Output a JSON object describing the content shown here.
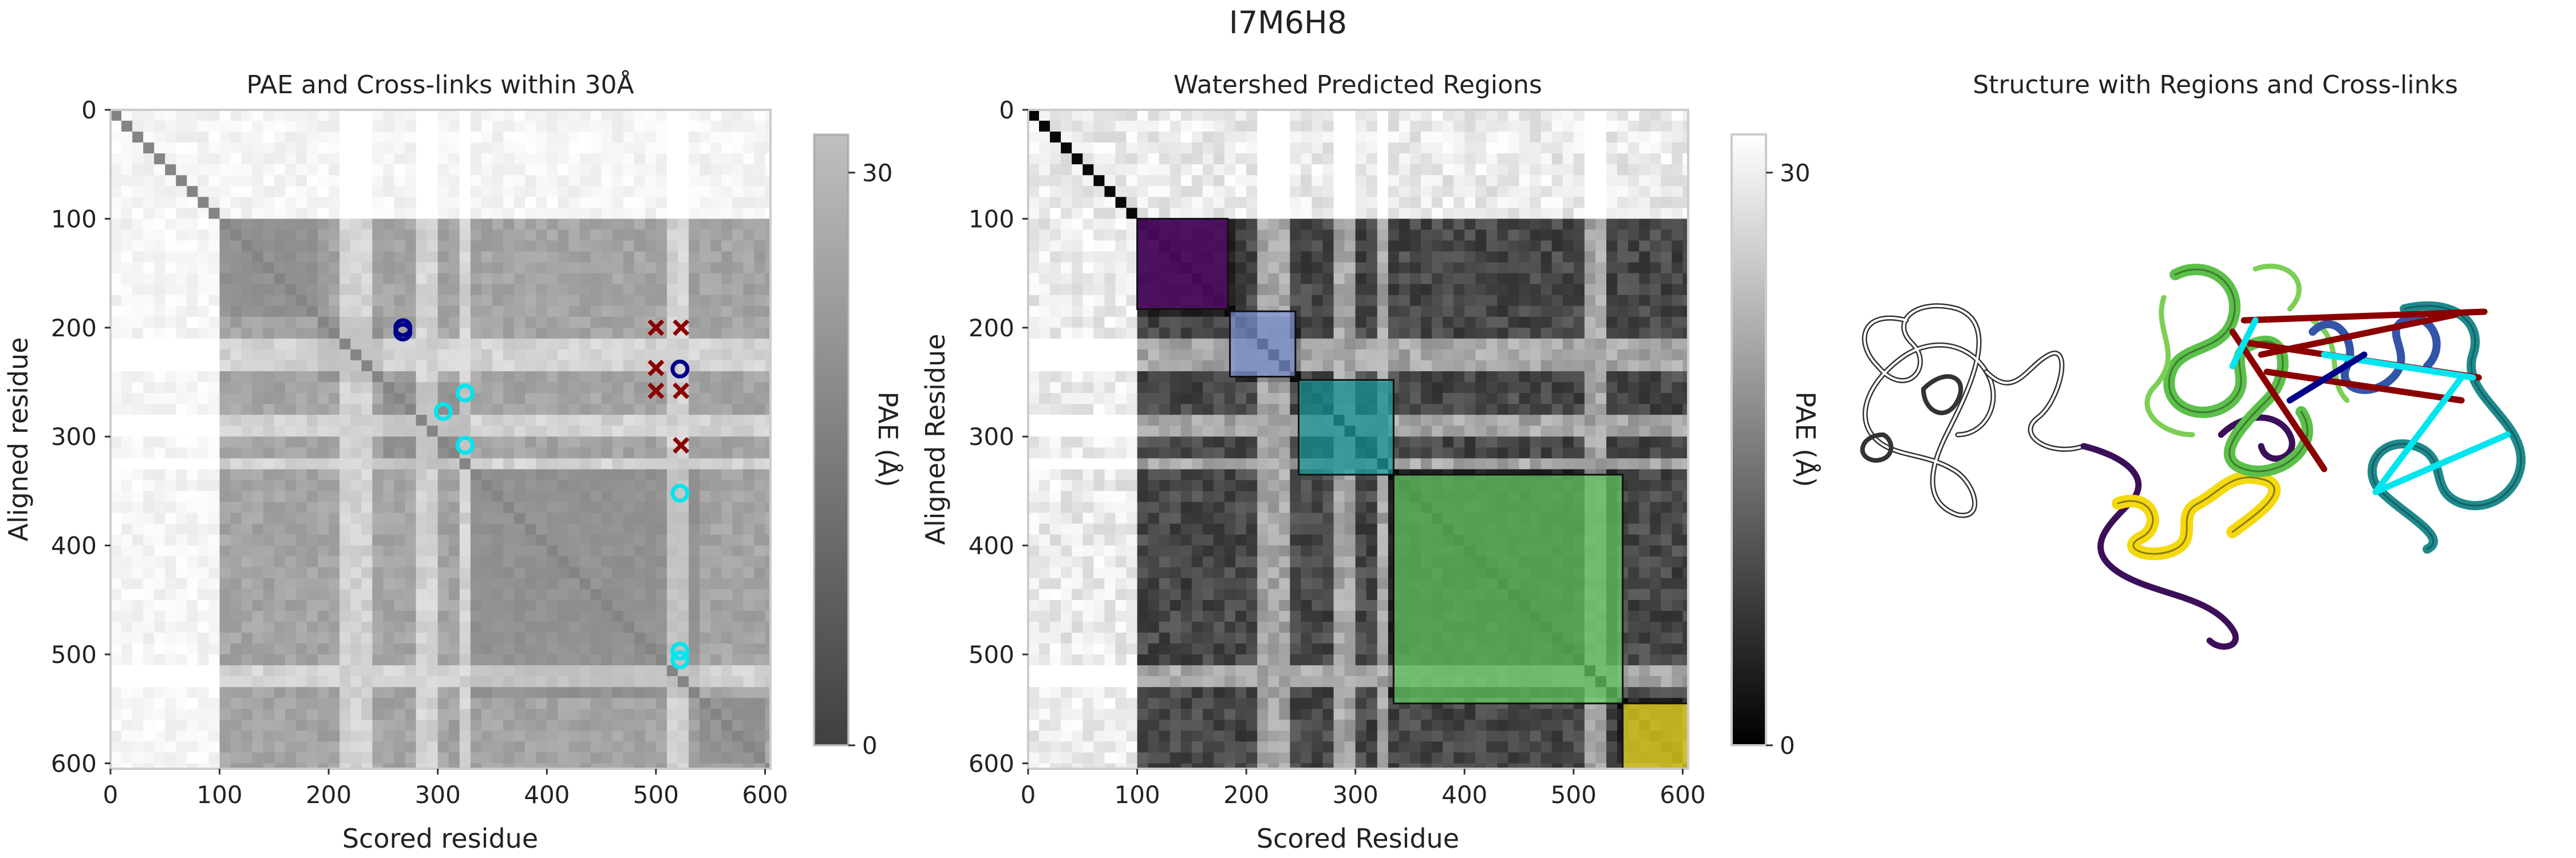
{
  "suptitle": "I7M6H8",
  "colors": {
    "cmap_low": "#000000",
    "cmap_high": "#ffffff",
    "axis_frame": "#cccccc",
    "crosslink_within": "#00e5ee",
    "crosslink_dark_circle": "#00008b",
    "crosslink_violation": "#8b0000",
    "region_purple": "#5b0a74",
    "region_blue": "#7f95d8",
    "region_teal": "#1f9f9f",
    "region_green": "#6ad06a",
    "region_yellow": "#fde725"
  },
  "chart_data": [
    {
      "type": "heatmap",
      "title": "PAE and Cross-links within 30Å",
      "xlabel": "Scored residue",
      "ylabel": "Aligned residue",
      "xlim": [
        0,
        605
      ],
      "ylim": [
        605,
        0
      ],
      "xticks": [
        0,
        100,
        200,
        300,
        400,
        500,
        600
      ],
      "yticks": [
        0,
        100,
        200,
        300,
        400,
        500,
        600
      ],
      "grid": false,
      "colorbar": {
        "label": "PAE (Å)",
        "range": [
          0,
          32
        ],
        "ticks": [
          0,
          30
        ]
      },
      "domain_boundaries": [
        100,
        190,
        250,
        335,
        545,
        605
      ],
      "crosslinks_within_30A": [
        {
          "x": 268,
          "y": 200,
          "color": "dark"
        },
        {
          "x": 268,
          "y": 204,
          "color": "dark"
        },
        {
          "x": 522,
          "y": 238,
          "color": "dark"
        },
        {
          "x": 325,
          "y": 260,
          "color": "cyan"
        },
        {
          "x": 305,
          "y": 277,
          "color": "cyan"
        },
        {
          "x": 325,
          "y": 308,
          "color": "cyan"
        },
        {
          "x": 522,
          "y": 352,
          "color": "cyan"
        },
        {
          "x": 522,
          "y": 497,
          "color": "cyan"
        },
        {
          "x": 522,
          "y": 505,
          "color": "cyan"
        }
      ],
      "crosslinks_violations": [
        {
          "x": 500,
          "y": 200
        },
        {
          "x": 523,
          "y": 200
        },
        {
          "x": 500,
          "y": 237
        },
        {
          "x": 500,
          "y": 258
        },
        {
          "x": 523,
          "y": 258
        },
        {
          "x": 523,
          "y": 308
        }
      ]
    },
    {
      "type": "heatmap",
      "title": "Watershed Predicted Regions",
      "xlabel": "Scored Residue",
      "ylabel": "Aligned Residue",
      "xlim": [
        0,
        605
      ],
      "ylim": [
        605,
        0
      ],
      "xticks": [
        0,
        100,
        200,
        300,
        400,
        500,
        600
      ],
      "yticks": [
        0,
        100,
        200,
        300,
        400,
        500,
        600
      ],
      "grid": false,
      "colorbar": {
        "label": "PAE (Å)",
        "range": [
          0,
          32
        ],
        "ticks": [
          0,
          30
        ]
      },
      "regions": [
        {
          "start": 100,
          "end": 183,
          "color": "#5b0a74"
        },
        {
          "start": 185,
          "end": 245,
          "color": "#7f95d8"
        },
        {
          "start": 248,
          "end": 335,
          "color": "#1f9f9f"
        },
        {
          "start": 335,
          "end": 545,
          "color": "#6ad06a"
        },
        {
          "start": 545,
          "end": 605,
          "color": "#fde725"
        }
      ]
    }
  ],
  "structure_panel": {
    "title": "Structure with Regions and Cross-links"
  }
}
